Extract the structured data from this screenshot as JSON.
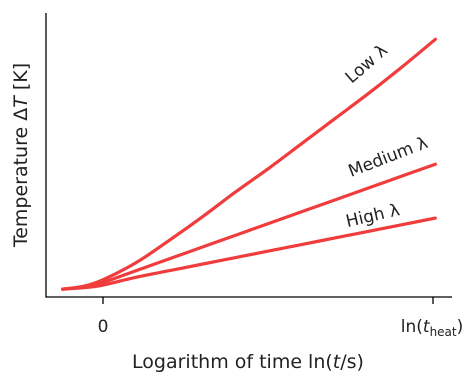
{
  "chart_data": {
    "type": "line",
    "title": "",
    "xlabel": "Logarithm of time ln(t/s)",
    "ylabel": "Temperature ΔT [K]",
    "x_ticks": [
      {
        "label": "0",
        "value": 0
      },
      {
        "label": "ln(t_heat)",
        "value": 10
      }
    ],
    "y_ticks": [],
    "xlim": [
      -1.7,
      10.5
    ],
    "ylim": [
      -0.3,
      10.5
    ],
    "grid": false,
    "legend": "none (series labelled inline)",
    "series_color": "#f03c3c",
    "series": [
      {
        "name": "Low λ",
        "x": [
          -1.2,
          -0.6,
          0,
          1,
          2,
          3,
          4,
          5,
          6,
          7,
          8,
          9,
          10
        ],
        "y": [
          0.0,
          0.1,
          0.35,
          1.0,
          1.85,
          2.75,
          3.7,
          4.6,
          5.55,
          6.5,
          7.45,
          8.45,
          9.5
        ]
      },
      {
        "name": "Medium λ",
        "x": [
          -1.2,
          -0.6,
          0,
          1,
          2,
          3,
          4,
          5,
          6,
          7,
          8,
          9,
          10
        ],
        "y": [
          0.0,
          0.08,
          0.25,
          0.7,
          1.15,
          1.6,
          2.05,
          2.5,
          2.95,
          3.4,
          3.85,
          4.3,
          4.75
        ]
      },
      {
        "name": "High λ",
        "x": [
          -1.2,
          -0.6,
          0,
          1,
          2,
          3,
          4,
          5,
          6,
          7,
          8,
          9,
          10
        ],
        "y": [
          0.0,
          0.05,
          0.15,
          0.45,
          0.7,
          0.95,
          1.2,
          1.45,
          1.7,
          1.95,
          2.2,
          2.45,
          2.7
        ]
      }
    ]
  }
}
